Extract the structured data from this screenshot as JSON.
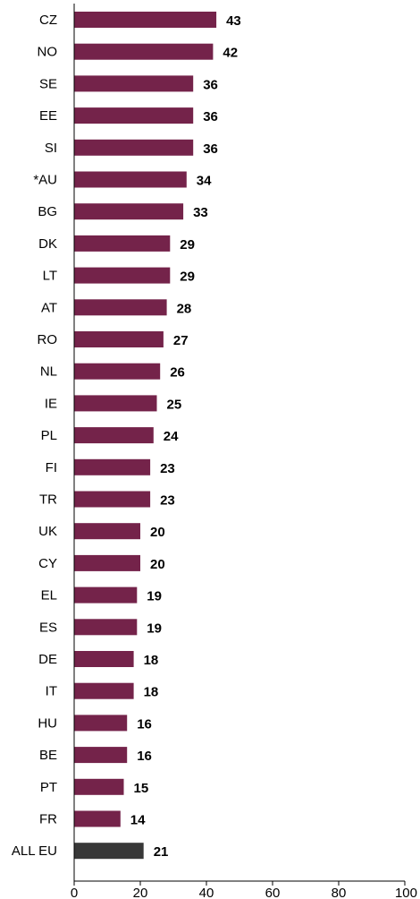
{
  "chart_data": {
    "type": "bar",
    "orientation": "horizontal",
    "categories": [
      "CZ",
      "NO",
      "SE",
      "EE",
      "SI",
      "*AU",
      "BG",
      "DK",
      "LT",
      "AT",
      "RO",
      "NL",
      "IE",
      "PL",
      "FI",
      "TR",
      "UK",
      "CY",
      "EL",
      "ES",
      "DE",
      "IT",
      "HU",
      "BE",
      "PT",
      "FR",
      "ALL EU"
    ],
    "values": [
      43,
      42,
      36,
      36,
      36,
      34,
      33,
      29,
      29,
      28,
      27,
      26,
      25,
      24,
      23,
      23,
      20,
      20,
      19,
      19,
      18,
      18,
      16,
      16,
      15,
      14,
      21
    ],
    "xlim": [
      0,
      100
    ],
    "xticks": [
      0,
      20,
      40,
      60,
      80,
      100
    ],
    "grid": false,
    "legend": "none",
    "colors": {
      "bar": "#74234a",
      "highlight": "#383838",
      "highlight_category": "ALL EU",
      "axis": "#000000"
    }
  }
}
